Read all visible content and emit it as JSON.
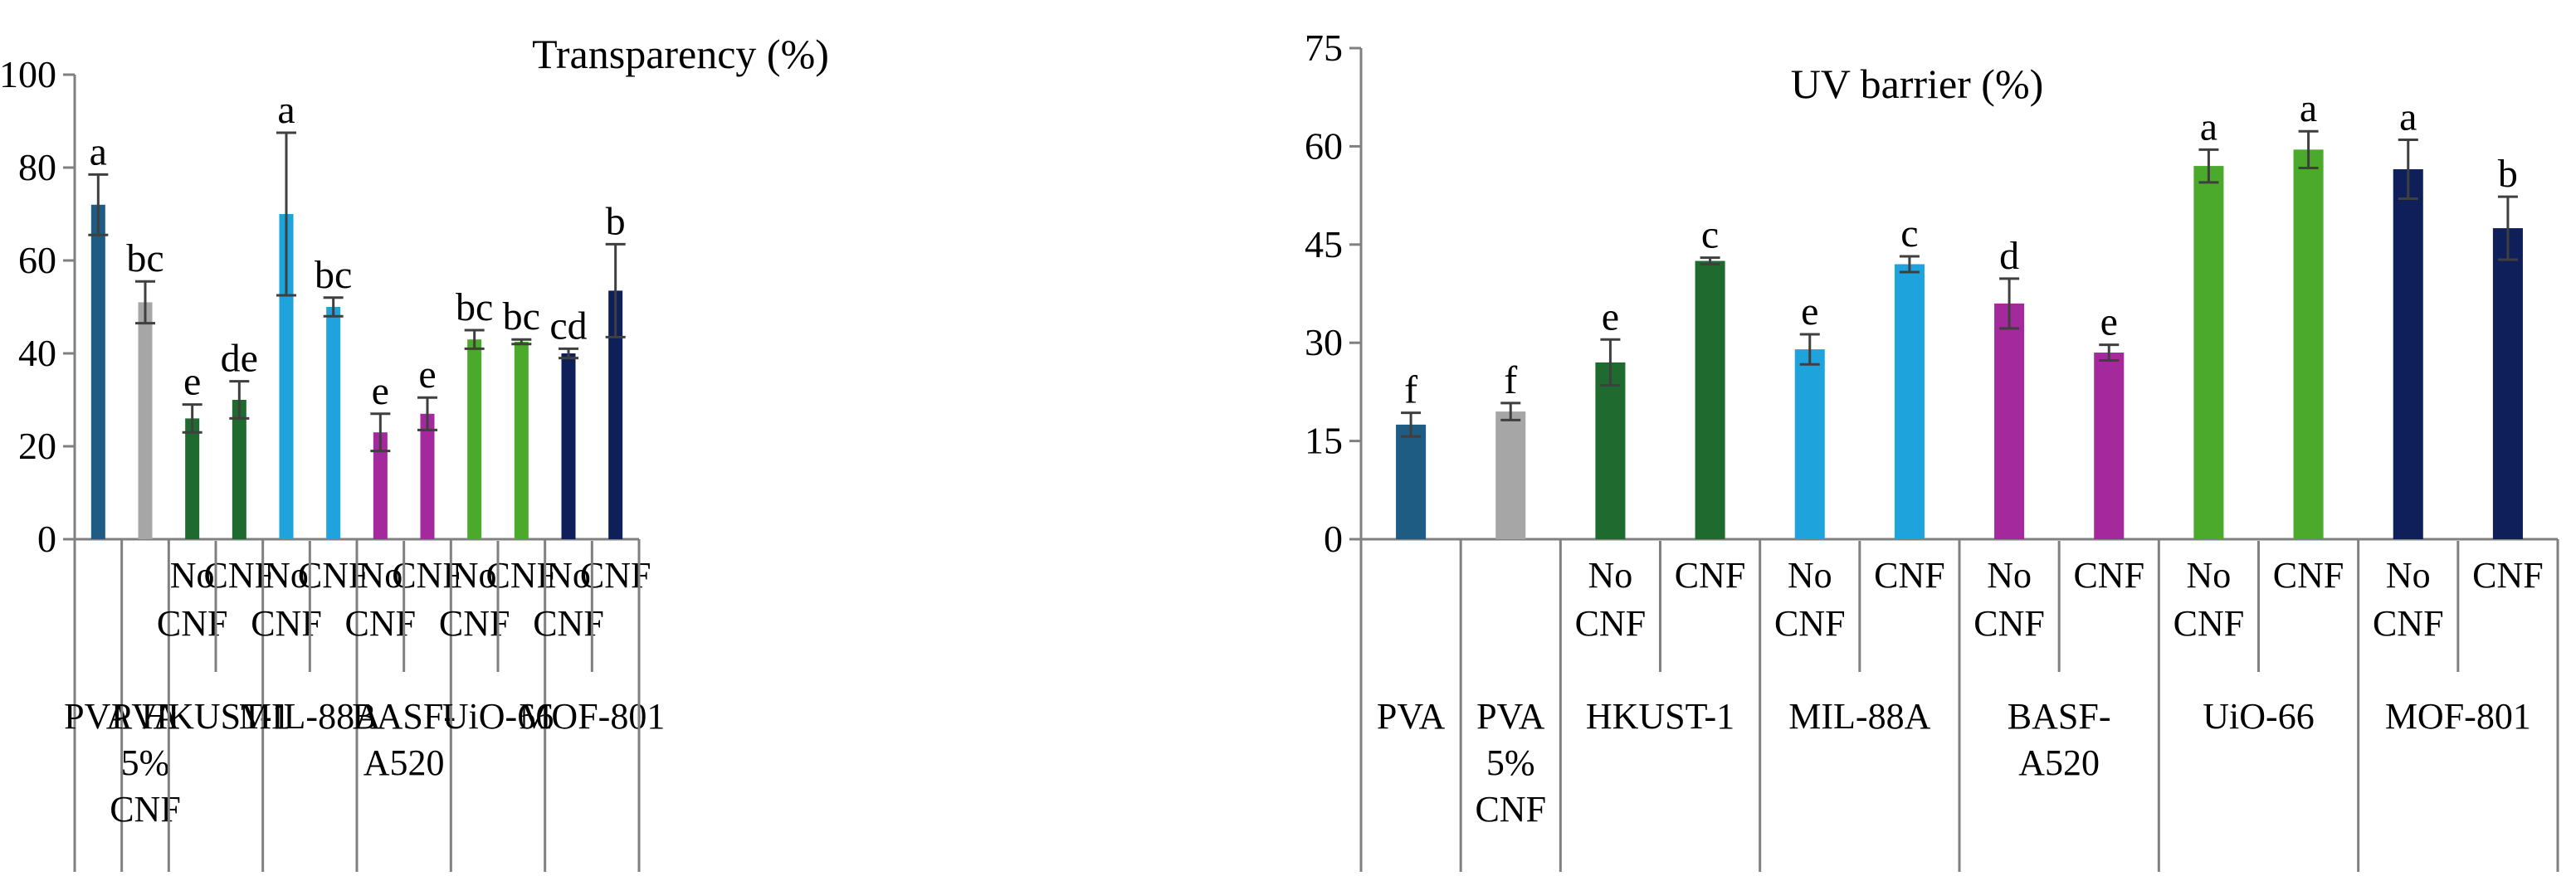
{
  "colors": {
    "PVA": "#1f5c84",
    "PVA5": "#a6a6a6",
    "HKUST": "#1f6b2f",
    "MIL": "#1ea3dd",
    "BASF": "#a3299c",
    "UIO": "#4ba92c",
    "MOF801": "#0f1f5a",
    "axis": "#808080",
    "error": "#3f3f3f"
  },
  "chart_data": [
    {
      "type": "bar",
      "title": "Transparency (%)",
      "xlabel": "",
      "ylabel": "",
      "ylim": [
        0,
        100
      ],
      "yticks": [
        0,
        20,
        40,
        60,
        80,
        100
      ],
      "grid": false,
      "groups": [
        {
          "label": [
            "PVA"
          ],
          "bars": [
            {
              "sub": [],
              "value": 72,
              "error": 6.5,
              "letter": "a",
              "color": "PVA"
            }
          ]
        },
        {
          "label": [
            "PVA",
            "5%",
            "CNF"
          ],
          "bars": [
            {
              "sub": [],
              "value": 51,
              "error": 4.5,
              "letter": "bc",
              "color": "PVA5"
            }
          ]
        },
        {
          "label": [
            "HKUST-1"
          ],
          "bars": [
            {
              "sub": [
                "No",
                "CNF"
              ],
              "value": 26,
              "error": 3,
              "letter": "e",
              "color": "HKUST"
            },
            {
              "sub": [
                "CNF"
              ],
              "value": 30,
              "error": 4,
              "letter": "de",
              "color": "HKUST"
            }
          ]
        },
        {
          "label": [
            "MIL-88A"
          ],
          "bars": [
            {
              "sub": [
                "No",
                "CNF"
              ],
              "value": 70,
              "error": 17.5,
              "letter": "a",
              "color": "MIL"
            },
            {
              "sub": [
                "CNF"
              ],
              "value": 50,
              "error": 2,
              "letter": "bc",
              "color": "MIL"
            }
          ]
        },
        {
          "label": [
            "BASF-",
            "A520"
          ],
          "bars": [
            {
              "sub": [
                "No",
                "CNF"
              ],
              "value": 23,
              "error": 4,
              "letter": "e",
              "color": "BASF"
            },
            {
              "sub": [
                "CNF"
              ],
              "value": 27,
              "error": 3.5,
              "letter": "e",
              "color": "BASF"
            }
          ]
        },
        {
          "label": [
            "UiO-66"
          ],
          "bars": [
            {
              "sub": [
                "No",
                "CNF"
              ],
              "value": 43,
              "error": 2,
              "letter": "bc",
              "color": "UIO"
            },
            {
              "sub": [
                "CNF"
              ],
              "value": 42.5,
              "error": 0.5,
              "letter": "bc",
              "color": "UIO"
            }
          ]
        },
        {
          "label": [
            "MOF-801"
          ],
          "bars": [
            {
              "sub": [
                "No",
                "CNF"
              ],
              "value": 40,
              "error": 1,
              "letter": "cd",
              "color": "MOF801"
            },
            {
              "sub": [
                "CNF"
              ],
              "value": 53.5,
              "error": 10,
              "letter": "b",
              "color": "MOF801"
            }
          ]
        }
      ]
    },
    {
      "type": "bar",
      "title": "UV barrier (%)",
      "xlabel": "",
      "ylabel": "",
      "ylim": [
        0,
        75
      ],
      "yticks": [
        0,
        15,
        30,
        45,
        60,
        75
      ],
      "grid": false,
      "groups": [
        {
          "label": [
            "PVA"
          ],
          "bars": [
            {
              "sub": [],
              "value": 17.5,
              "error": 1.8,
              "letter": "f",
              "color": "PVA"
            }
          ]
        },
        {
          "label": [
            "PVA",
            "5%",
            "CNF"
          ],
          "bars": [
            {
              "sub": [],
              "value": 19.5,
              "error": 1.3,
              "letter": "f",
              "color": "PVA5"
            }
          ]
        },
        {
          "label": [
            "HKUST-1"
          ],
          "bars": [
            {
              "sub": [
                "No",
                "CNF"
              ],
              "value": 27,
              "error": 3.5,
              "letter": "e",
              "color": "HKUST"
            },
            {
              "sub": [
                "CNF"
              ],
              "value": 42.5,
              "error": 0.5,
              "letter": "c",
              "color": "HKUST"
            }
          ]
        },
        {
          "label": [
            "MIL-88A"
          ],
          "bars": [
            {
              "sub": [
                "No",
                "CNF"
              ],
              "value": 29,
              "error": 2.3,
              "letter": "e",
              "color": "MIL"
            },
            {
              "sub": [
                "CNF"
              ],
              "value": 42,
              "error": 1.2,
              "letter": "c",
              "color": "MIL"
            }
          ]
        },
        {
          "label": [
            "BASF-",
            "A520"
          ],
          "bars": [
            {
              "sub": [
                "No",
                "CNF"
              ],
              "value": 36,
              "error": 3.8,
              "letter": "d",
              "color": "BASF"
            },
            {
              "sub": [
                "CNF"
              ],
              "value": 28.5,
              "error": 1.2,
              "letter": "e",
              "color": "BASF"
            }
          ]
        },
        {
          "label": [
            "UiO-66"
          ],
          "bars": [
            {
              "sub": [
                "No",
                "CNF"
              ],
              "value": 57,
              "error": 2.5,
              "letter": "a",
              "color": "UIO"
            },
            {
              "sub": [
                "CNF"
              ],
              "value": 59.5,
              "error": 2.8,
              "letter": "a",
              "color": "UIO"
            }
          ]
        },
        {
          "label": [
            "MOF-801"
          ],
          "bars": [
            {
              "sub": [
                "No",
                "CNF"
              ],
              "value": 56.5,
              "error": 4.5,
              "letter": "a",
              "color": "MOF801"
            },
            {
              "sub": [
                "CNF"
              ],
              "value": 47.5,
              "error": 4.8,
              "letter": "b",
              "color": "MOF801"
            }
          ]
        }
      ]
    }
  ]
}
